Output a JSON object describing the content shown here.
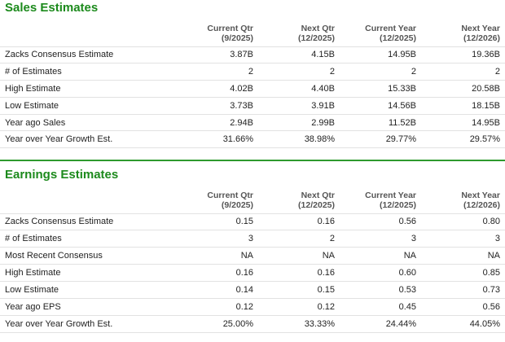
{
  "sales": {
    "title": "Sales Estimates",
    "columns": [
      {
        "name": "Current Qtr",
        "period": "(9/2025)"
      },
      {
        "name": "Next Qtr",
        "period": "(12/2025)"
      },
      {
        "name": "Current Year",
        "period": "(12/2025)"
      },
      {
        "name": "Next Year",
        "period": "(12/2026)"
      }
    ],
    "rows": [
      {
        "label": "Zacks Consensus Estimate",
        "values": [
          "3.87B",
          "4.15B",
          "14.95B",
          "19.36B"
        ]
      },
      {
        "label": "# of Estimates",
        "values": [
          "2",
          "2",
          "2",
          "2"
        ]
      },
      {
        "label": "High Estimate",
        "values": [
          "4.02B",
          "4.40B",
          "15.33B",
          "20.58B"
        ]
      },
      {
        "label": "Low Estimate",
        "values": [
          "3.73B",
          "3.91B",
          "14.56B",
          "18.15B"
        ]
      },
      {
        "label": "Year ago Sales",
        "values": [
          "2.94B",
          "2.99B",
          "11.52B",
          "14.95B"
        ]
      },
      {
        "label": "Year over Year Growth Est.",
        "values": [
          "31.66%",
          "38.98%",
          "29.77%",
          "29.57%"
        ]
      }
    ]
  },
  "earnings": {
    "title": "Earnings Estimates",
    "columns": [
      {
        "name": "Current Qtr",
        "period": "(9/2025)"
      },
      {
        "name": "Next Qtr",
        "period": "(12/2025)"
      },
      {
        "name": "Current Year",
        "period": "(12/2025)"
      },
      {
        "name": "Next Year",
        "period": "(12/2026)"
      }
    ],
    "rows": [
      {
        "label": "Zacks Consensus Estimate",
        "values": [
          "0.15",
          "0.16",
          "0.56",
          "0.80"
        ]
      },
      {
        "label": "# of Estimates",
        "values": [
          "3",
          "2",
          "3",
          "3"
        ]
      },
      {
        "label": "Most Recent Consensus",
        "values": [
          "NA",
          "NA",
          "NA",
          "NA"
        ]
      },
      {
        "label": "High Estimate",
        "values": [
          "0.16",
          "0.16",
          "0.60",
          "0.85"
        ]
      },
      {
        "label": "Low Estimate",
        "values": [
          "0.14",
          "0.15",
          "0.53",
          "0.73"
        ]
      },
      {
        "label": "Year ago EPS",
        "values": [
          "0.12",
          "0.12",
          "0.45",
          "0.56"
        ]
      },
      {
        "label": "Year over Year Growth Est.",
        "values": [
          "25.00%",
          "33.33%",
          "24.44%",
          "44.05%"
        ]
      }
    ]
  },
  "colors": {
    "section_title": "#1c8a1c",
    "divider": "#2e9a2e",
    "row_border": "#e2e2e2"
  }
}
